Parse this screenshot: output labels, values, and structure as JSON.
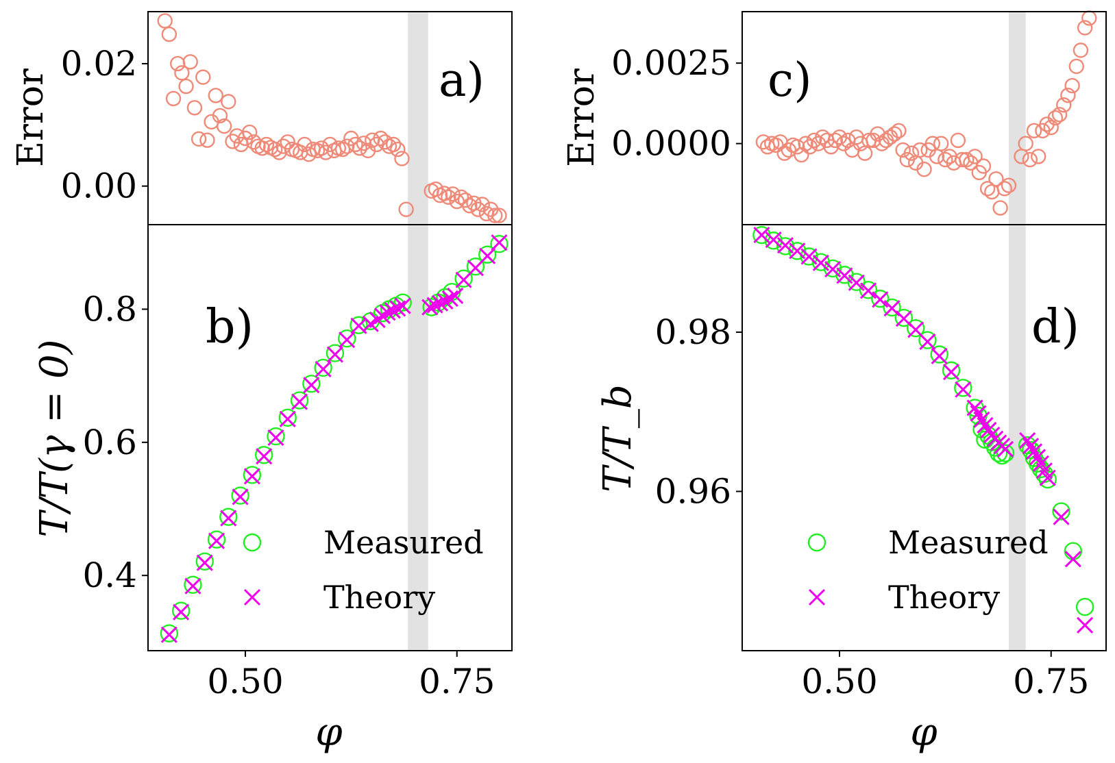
{
  "colors": {
    "error": "#f08a78",
    "measured": "#22ee22",
    "theory": "#ee00ee",
    "band": "#d3d3d3"
  },
  "legend": {
    "measured": "Measured",
    "theory": "Theory"
  },
  "chart_data": [
    {
      "id": "a",
      "type": "scatter",
      "panel_label": "a)",
      "ylabel": "Error",
      "xlim": [
        0.385,
        0.815
      ],
      "ylim": [
        -0.0063,
        0.0285
      ],
      "yticks": [
        0.0,
        0.02
      ],
      "ytick_labels": [
        "0.00",
        "0.02"
      ],
      "shaded_band": [
        0.692,
        0.716
      ],
      "series": [
        {
          "name": "Error",
          "marker": "open-circle",
          "x": [
            0.405,
            0.41,
            0.415,
            0.42,
            0.425,
            0.43,
            0.435,
            0.44,
            0.445,
            0.45,
            0.455,
            0.46,
            0.465,
            0.47,
            0.475,
            0.48,
            0.485,
            0.49,
            0.495,
            0.5,
            0.505,
            0.51,
            0.515,
            0.52,
            0.525,
            0.53,
            0.535,
            0.54,
            0.545,
            0.55,
            0.555,
            0.56,
            0.565,
            0.57,
            0.575,
            0.58,
            0.585,
            0.59,
            0.595,
            0.6,
            0.605,
            0.61,
            0.615,
            0.62,
            0.625,
            0.63,
            0.635,
            0.64,
            0.645,
            0.65,
            0.655,
            0.66,
            0.665,
            0.67,
            0.675,
            0.68,
            0.685,
            0.69,
            0.72,
            0.725,
            0.73,
            0.735,
            0.74,
            0.745,
            0.75,
            0.755,
            0.76,
            0.765,
            0.77,
            0.775,
            0.78,
            0.785,
            0.79,
            0.795,
            0.8
          ],
          "y": [
            0.027,
            0.0248,
            0.0143,
            0.02,
            0.0185,
            0.0163,
            0.0203,
            0.0128,
            0.0077,
            0.0178,
            0.0075,
            0.0105,
            0.0148,
            0.0115,
            0.0098,
            0.0138,
            0.0073,
            0.0082,
            0.0068,
            0.0078,
            0.0088,
            0.0072,
            0.0065,
            0.0062,
            0.0068,
            0.0063,
            0.006,
            0.0055,
            0.0065,
            0.0072,
            0.006,
            0.0058,
            0.0055,
            0.0068,
            0.0052,
            0.006,
            0.0058,
            0.0062,
            0.0055,
            0.0068,
            0.0058,
            0.0062,
            0.006,
            0.0065,
            0.0078,
            0.0068,
            0.0062,
            0.007,
            0.0058,
            0.0075,
            0.0068,
            0.0078,
            0.0072,
            0.0065,
            0.0068,
            0.006,
            0.0045,
            -0.0038,
            -0.0008,
            -0.0005,
            -0.0015,
            -0.0012,
            -0.0018,
            -0.0013,
            -0.0025,
            -0.0018,
            -0.0023,
            -0.0032,
            -0.0028,
            -0.0038,
            -0.003,
            -0.0045,
            -0.0038,
            -0.0048,
            -0.0048
          ]
        }
      ]
    },
    {
      "id": "b",
      "type": "scatter",
      "panel_label": "b)",
      "ylabel": "T/T(γ = 0)",
      "xlabel": "φ",
      "xlim": [
        0.385,
        0.815
      ],
      "ylim": [
        0.287,
        0.927
      ],
      "yticks": [
        0.4,
        0.6,
        0.8
      ],
      "ytick_labels": [
        "0.4",
        "0.6",
        "0.8"
      ],
      "xticks": [
        0.5,
        0.75
      ],
      "xtick_labels": [
        "0.50",
        "0.75"
      ],
      "shaded_band": [
        0.692,
        0.716
      ],
      "series": [
        {
          "name": "Measured",
          "marker": "open-circle",
          "x": [
            0.41,
            0.424,
            0.438,
            0.452,
            0.466,
            0.48,
            0.494,
            0.508,
            0.522,
            0.536,
            0.55,
            0.564,
            0.578,
            0.592,
            0.606,
            0.62,
            0.634,
            0.648,
            0.662,
            0.67,
            0.678,
            0.686,
            0.72,
            0.728,
            0.736,
            0.744,
            0.758,
            0.772,
            0.786,
            0.8
          ],
          "y": [
            0.313,
            0.347,
            0.386,
            0.421,
            0.454,
            0.488,
            0.52,
            0.551,
            0.581,
            0.609,
            0.637,
            0.663,
            0.688,
            0.712,
            0.734,
            0.756,
            0.776,
            0.782,
            0.794,
            0.8,
            0.805,
            0.81,
            0.803,
            0.81,
            0.818,
            0.826,
            0.846,
            0.864,
            0.882,
            0.898
          ]
        },
        {
          "name": "Theory",
          "marker": "x",
          "x": [
            0.41,
            0.424,
            0.438,
            0.452,
            0.466,
            0.48,
            0.494,
            0.508,
            0.522,
            0.536,
            0.55,
            0.564,
            0.578,
            0.592,
            0.606,
            0.62,
            0.634,
            0.648,
            0.656,
            0.662,
            0.668,
            0.674,
            0.68,
            0.686,
            0.718,
            0.724,
            0.73,
            0.736,
            0.742,
            0.748,
            0.758,
            0.772,
            0.786,
            0.8
          ],
          "y": [
            0.311,
            0.345,
            0.384,
            0.419,
            0.452,
            0.486,
            0.518,
            0.549,
            0.579,
            0.607,
            0.635,
            0.661,
            0.686,
            0.71,
            0.732,
            0.754,
            0.775,
            0.778,
            0.784,
            0.79,
            0.795,
            0.798,
            0.801,
            0.805,
            0.803,
            0.806,
            0.809,
            0.812,
            0.816,
            0.82,
            0.844,
            0.862,
            0.88,
            0.9
          ]
        }
      ]
    },
    {
      "id": "c",
      "type": "scatter",
      "panel_label": "c)",
      "ylabel": "Error",
      "xlim": [
        0.385,
        0.815
      ],
      "ylim": [
        -0.00252,
        0.0041
      ],
      "yticks": [
        0.0,
        0.0025
      ],
      "ytick_labels": [
        "0.0000",
        "0.0025"
      ],
      "shaded_band": [
        0.7,
        0.72
      ],
      "series": [
        {
          "name": "Error",
          "marker": "open-circle",
          "x": [
            0.41,
            0.415,
            0.42,
            0.425,
            0.43,
            0.435,
            0.44,
            0.445,
            0.45,
            0.455,
            0.46,
            0.465,
            0.47,
            0.475,
            0.48,
            0.485,
            0.49,
            0.495,
            0.5,
            0.505,
            0.51,
            0.515,
            0.52,
            0.525,
            0.53,
            0.535,
            0.54,
            0.545,
            0.55,
            0.555,
            0.56,
            0.565,
            0.57,
            0.575,
            0.58,
            0.585,
            0.59,
            0.595,
            0.6,
            0.605,
            0.61,
            0.615,
            0.62,
            0.625,
            0.63,
            0.635,
            0.64,
            0.645,
            0.65,
            0.655,
            0.66,
            0.665,
            0.67,
            0.675,
            0.68,
            0.685,
            0.69,
            0.695,
            0.7,
            0.715,
            0.72,
            0.725,
            0.73,
            0.735,
            0.74,
            0.745,
            0.75,
            0.755,
            0.76,
            0.765,
            0.77,
            0.775,
            0.78,
            0.785,
            0.79,
            0.795
          ],
          "y": [
            5e-05,
            -0.0001,
            0.0,
            -5e-05,
            5e-05,
            -0.0003,
            -0.0002,
            -5e-05,
            -0.0001,
            -0.00035,
            0.0,
            -0.0001,
            0.0001,
            0.0,
            0.0002,
            0.0001,
            -0.0001,
            0.0001,
            0.0002,
            0.0,
            0.0001,
            -0.0002,
            0.0002,
            0.0,
            -0.0003,
            0.0001,
            0.0001,
            0.0003,
            0.0,
            0.0001,
            0.0002,
            0.0003,
            0.0004,
            -0.0002,
            -0.0005,
            -0.0003,
            -0.0006,
            -0.0002,
            -0.0008,
            -0.0002,
            0.0,
            -0.0004,
            0.0,
            -0.0005,
            -0.0004,
            -0.0006,
            0.0001,
            -0.0005,
            -0.0005,
            -0.0006,
            -0.0004,
            -0.0009,
            -0.0007,
            -0.0014,
            -0.0015,
            -0.0011,
            -0.002,
            -0.0014,
            -0.0013,
            -0.0004,
            0.0,
            -0.0005,
            0.0004,
            -0.0004,
            0.0004,
            0.0006,
            0.0005,
            0.0008,
            0.0009,
            0.0012,
            0.0015,
            0.0018,
            0.0024,
            0.0029,
            0.0036,
            0.0039
          ]
        }
      ]
    },
    {
      "id": "d",
      "type": "scatter",
      "panel_label": "d)",
      "ylabel": "T/T_b",
      "xlabel": "φ",
      "xlim": [
        0.385,
        0.815
      ],
      "ylim": [
        0.94,
        0.9935
      ],
      "yticks": [
        0.96,
        0.98
      ],
      "ytick_labels": [
        "0.96",
        "0.98"
      ],
      "xticks": [
        0.5,
        0.75
      ],
      "xtick_labels": [
        "0.50",
        "0.75"
      ],
      "shaded_band": [
        0.7,
        0.72
      ],
      "series": [
        {
          "name": "Measured",
          "marker": "open-circle",
          "x": [
            0.408,
            0.422,
            0.436,
            0.45,
            0.464,
            0.478,
            0.492,
            0.506,
            0.52,
            0.534,
            0.548,
            0.562,
            0.576,
            0.59,
            0.604,
            0.618,
            0.632,
            0.646,
            0.66,
            0.664,
            0.668,
            0.672,
            0.676,
            0.68,
            0.684,
            0.688,
            0.692,
            0.696,
            0.722,
            0.726,
            0.73,
            0.734,
            0.738,
            0.742,
            0.746,
            0.762,
            0.776,
            0.79
          ],
          "y": [
            0.9922,
            0.9915,
            0.9908,
            0.9902,
            0.9895,
            0.9888,
            0.988,
            0.9872,
            0.9863,
            0.9853,
            0.9842,
            0.9831,
            0.9818,
            0.9805,
            0.979,
            0.9772,
            0.9752,
            0.973,
            0.9705,
            0.9695,
            0.9678,
            0.9665,
            0.967,
            0.9662,
            0.9655,
            0.9648,
            0.9645,
            0.9648,
            0.9658,
            0.9652,
            0.9642,
            0.9635,
            0.9628,
            0.9622,
            0.9615,
            0.9575,
            0.9525,
            0.9455
          ]
        },
        {
          "name": "Theory",
          "marker": "x",
          "x": [
            0.408,
            0.422,
            0.436,
            0.45,
            0.464,
            0.478,
            0.492,
            0.506,
            0.52,
            0.534,
            0.548,
            0.562,
            0.576,
            0.59,
            0.604,
            0.618,
            0.632,
            0.646,
            0.66,
            0.664,
            0.668,
            0.672,
            0.676,
            0.68,
            0.684,
            0.688,
            0.692,
            0.696,
            0.722,
            0.726,
            0.73,
            0.734,
            0.738,
            0.742,
            0.746,
            0.762,
            0.776,
            0.79
          ],
          "y": [
            0.9922,
            0.9916,
            0.9909,
            0.9902,
            0.9895,
            0.9887,
            0.9879,
            0.9871,
            0.9862,
            0.9852,
            0.9841,
            0.983,
            0.9817,
            0.9803,
            0.9788,
            0.977,
            0.975,
            0.9728,
            0.9705,
            0.9698,
            0.969,
            0.9683,
            0.9677,
            0.9671,
            0.9666,
            0.9661,
            0.9657,
            0.9653,
            0.9664,
            0.9657,
            0.965,
            0.9643,
            0.9635,
            0.9626,
            0.9617,
            0.9568,
            0.9515,
            0.9432
          ]
        }
      ]
    }
  ]
}
